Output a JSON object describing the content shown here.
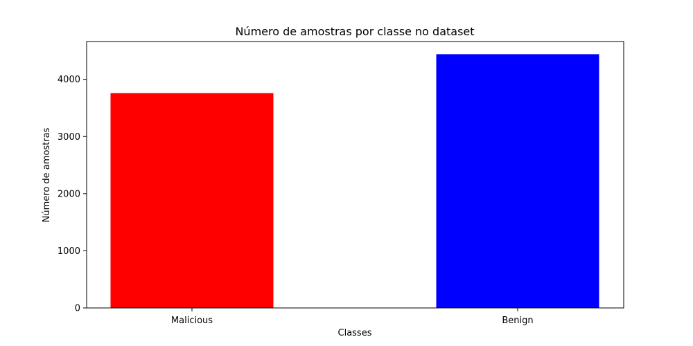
{
  "chart_data": {
    "type": "bar",
    "title": "Número de amostras por classe no dataset",
    "xlabel": "Classes",
    "ylabel": "Número de amostras",
    "categories": [
      "Malicious",
      "Benign"
    ],
    "values": [
      3760,
      4440
    ],
    "colors": [
      "#ff0000",
      "#0000ff"
    ],
    "yticks": [
      0,
      1000,
      2000,
      3000,
      4000
    ],
    "ylim": [
      0,
      4662
    ],
    "grid": false,
    "legend": "none"
  }
}
